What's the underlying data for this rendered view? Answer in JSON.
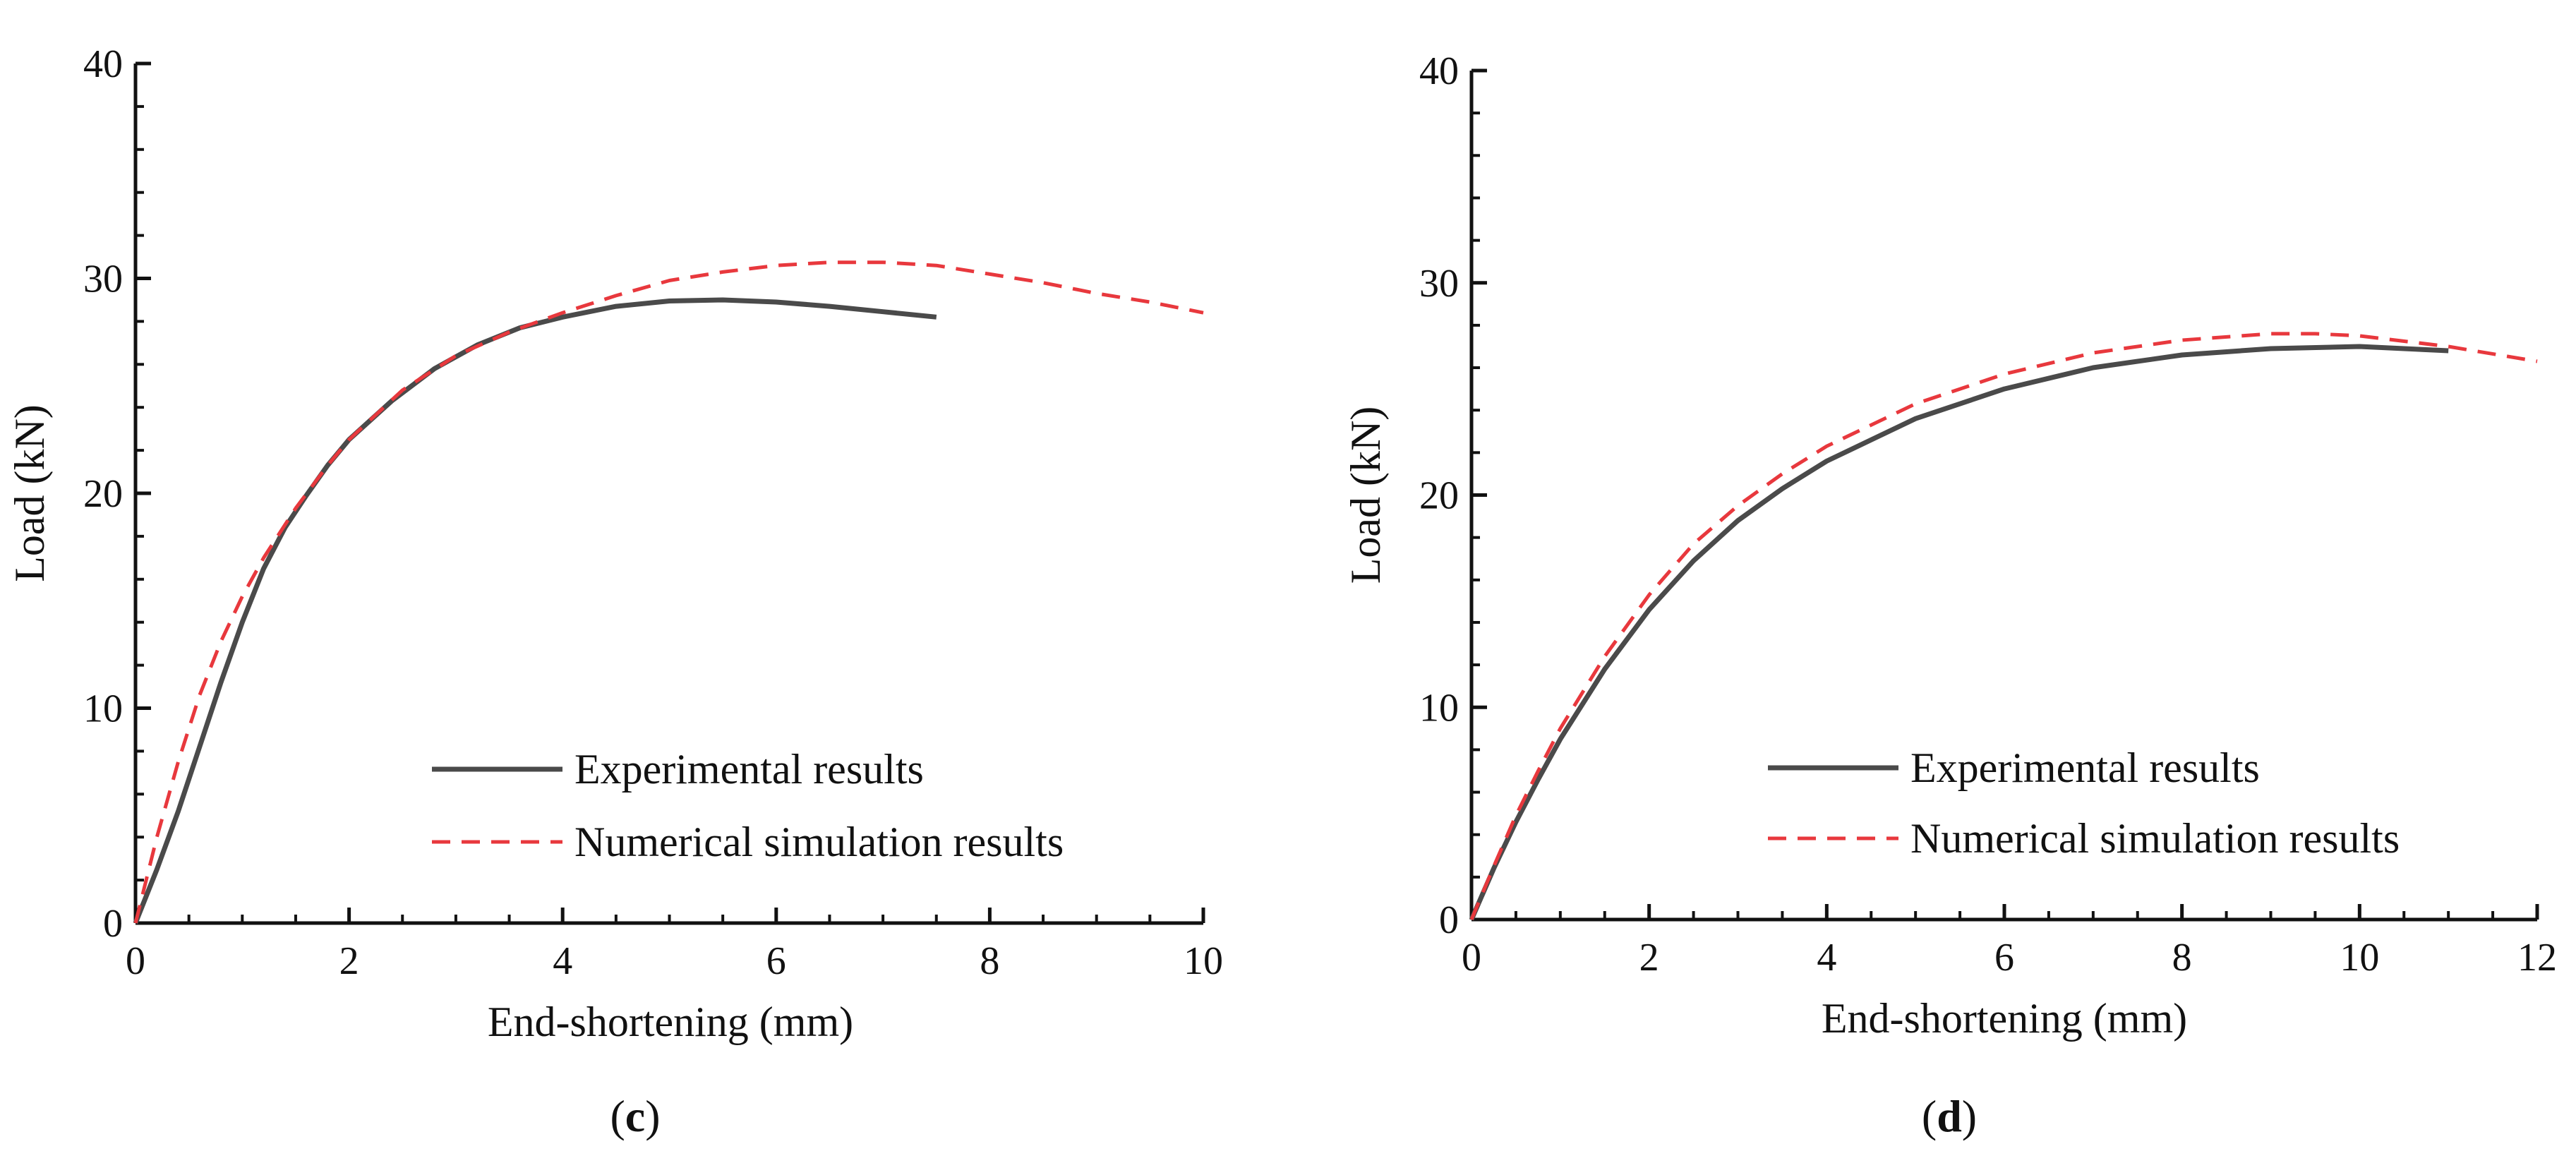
{
  "colors": {
    "experimental": "#4a4a4a",
    "numerical": "#e8383d",
    "axis": "#111111"
  },
  "chart_data": [
    {
      "type": "line",
      "panel": "c",
      "panel_label": {
        "open": "(",
        "letter": "c",
        "close": ")"
      },
      "xlabel": "End-shortening (mm)",
      "ylabel": "Load (kN)",
      "xlim": [
        0,
        10
      ],
      "ylim": [
        0,
        40
      ],
      "xticks": [
        0,
        2,
        4,
        6,
        8,
        10
      ],
      "yticks": [
        0,
        10,
        20,
        30,
        40
      ],
      "legend": {
        "position": "lower-right",
        "entries": [
          "Experimental results",
          "Numerical simulation results"
        ]
      },
      "series": [
        {
          "name": "Experimental results",
          "style": "solid",
          "x": [
            0,
            0.2,
            0.4,
            0.6,
            0.8,
            1.0,
            1.2,
            1.4,
            1.6,
            1.8,
            2.0,
            2.4,
            2.8,
            3.2,
            3.6,
            4.0,
            4.5,
            5.0,
            5.5,
            6.0,
            6.5,
            7.0,
            7.5
          ],
          "y": [
            0,
            2.5,
            5.2,
            8.2,
            11.2,
            14.0,
            16.5,
            18.4,
            19.9,
            21.3,
            22.5,
            24.3,
            25.8,
            26.9,
            27.7,
            28.2,
            28.7,
            28.95,
            29.0,
            28.9,
            28.7,
            28.45,
            28.2
          ]
        },
        {
          "name": "Numerical simulation results",
          "style": "dashed",
          "x": [
            0,
            0.2,
            0.4,
            0.6,
            0.8,
            1.0,
            1.2,
            1.5,
            1.8,
            2.0,
            2.5,
            3.0,
            3.5,
            4.0,
            4.5,
            5.0,
            5.5,
            6.0,
            6.5,
            7.0,
            7.5,
            8.0,
            8.5,
            9.0,
            9.5,
            10.0
          ],
          "y": [
            0,
            4.0,
            7.5,
            10.6,
            13.1,
            15.2,
            17.0,
            19.3,
            21.3,
            22.5,
            24.8,
            26.4,
            27.5,
            28.4,
            29.2,
            29.9,
            30.3,
            30.6,
            30.75,
            30.75,
            30.6,
            30.2,
            29.8,
            29.3,
            28.9,
            28.4
          ]
        }
      ]
    },
    {
      "type": "line",
      "panel": "d",
      "panel_label": {
        "open": "(",
        "letter": "d",
        "close": ")"
      },
      "xlabel": "End-shortening (mm)",
      "ylabel": "Load (kN)",
      "xlim": [
        0,
        12
      ],
      "ylim": [
        0,
        40
      ],
      "xticks": [
        0,
        2,
        4,
        6,
        8,
        10,
        12
      ],
      "yticks": [
        0,
        10,
        20,
        30,
        40
      ],
      "legend": {
        "position": "lower-right",
        "entries": [
          "Experimental results",
          "Numerical simulation results"
        ]
      },
      "series": [
        {
          "name": "Experimental results",
          "style": "solid",
          "x": [
            0,
            0.25,
            0.5,
            0.75,
            1.0,
            1.5,
            2.0,
            2.5,
            3.0,
            3.5,
            4.0,
            5.0,
            6.0,
            7.0,
            8.0,
            9.0,
            10.0,
            11.0
          ],
          "y": [
            0,
            2.4,
            4.6,
            6.6,
            8.5,
            11.8,
            14.6,
            16.9,
            18.8,
            20.3,
            21.6,
            23.6,
            25.0,
            26.0,
            26.6,
            26.9,
            27.0,
            26.8
          ]
        },
        {
          "name": "Numerical simulation results",
          "style": "dashed",
          "x": [
            0,
            0.25,
            0.5,
            0.75,
            1.0,
            1.5,
            2.0,
            2.5,
            3.0,
            3.5,
            4.0,
            5.0,
            6.0,
            7.0,
            8.0,
            9.0,
            9.5,
            10.0,
            11.0,
            12.0
          ],
          "y": [
            0,
            2.5,
            4.9,
            7.0,
            9.0,
            12.4,
            15.3,
            17.7,
            19.5,
            21.0,
            22.3,
            24.3,
            25.7,
            26.7,
            27.3,
            27.6,
            27.6,
            27.5,
            27.0,
            26.3
          ]
        }
      ]
    }
  ]
}
